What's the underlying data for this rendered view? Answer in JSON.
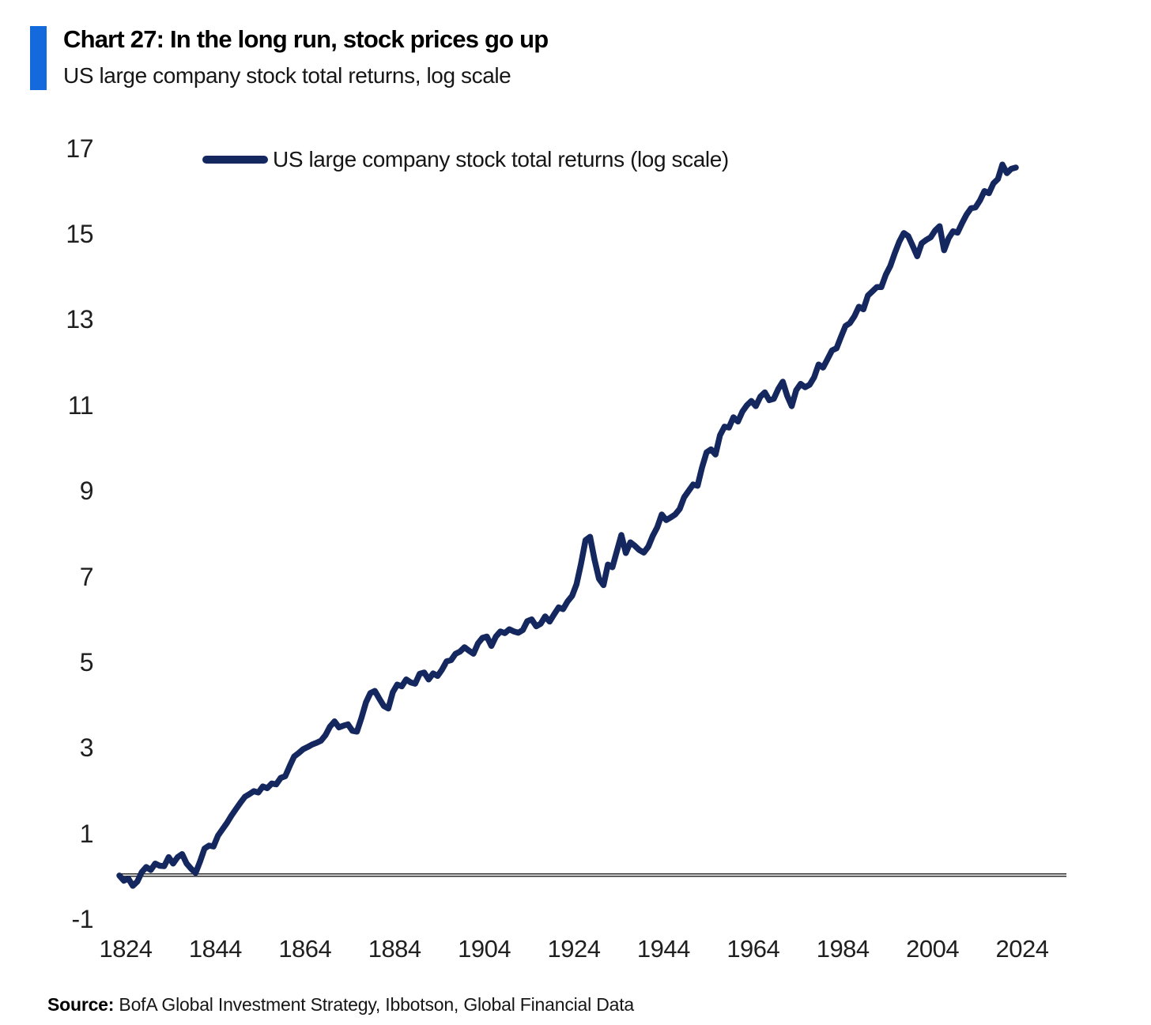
{
  "header": {
    "title": "Chart 27: In the long run, stock prices go up",
    "subtitle": "US large company stock total returns, log scale"
  },
  "legend": {
    "label": "US large company stock total returns (log scale)"
  },
  "source": {
    "label": "Source:",
    "text": " BofA Global Investment Strategy, Ibbotson, Global Financial Data"
  },
  "colors": {
    "accent_bar": "#1469dc",
    "line": "#14275e",
    "axis": "#3a3a3a",
    "tick_text": "#1f1f1f"
  },
  "chart_data": {
    "type": "line",
    "title": "US large company stock total returns, log scale",
    "xlabel": "",
    "ylabel": "",
    "grid": false,
    "legend_position": "top-left-inside",
    "x_ticks": [
      1824,
      1844,
      1864,
      1884,
      1904,
      1924,
      1944,
      1964,
      1984,
      2004,
      2024
    ],
    "y_ticks": [
      17,
      15,
      13,
      11,
      9,
      7,
      5,
      3,
      1,
      -1
    ],
    "xlim": [
      1824,
      2034
    ],
    "ylim": [
      -1.6,
      17.4
    ],
    "baseline": 0,
    "series": [
      {
        "name": "US large company stock total returns (log scale)",
        "x_start": 1824,
        "x_step": 1,
        "values": [
          0.02,
          -0.1,
          -0.05,
          -0.22,
          -0.12,
          0.1,
          0.22,
          0.15,
          0.3,
          0.25,
          0.24,
          0.45,
          0.3,
          0.45,
          0.52,
          0.3,
          0.18,
          0.08,
          0.35,
          0.65,
          0.72,
          0.7,
          0.95,
          1.1,
          1.25,
          1.42,
          1.57,
          1.72,
          1.86,
          1.92,
          1.99,
          1.96,
          2.1,
          2.06,
          2.17,
          2.15,
          2.3,
          2.34,
          2.58,
          2.8,
          2.88,
          2.97,
          3.02,
          3.08,
          3.12,
          3.17,
          3.3,
          3.5,
          3.62,
          3.48,
          3.52,
          3.55,
          3.4,
          3.38,
          3.7,
          4.06,
          4.28,
          4.33,
          4.15,
          3.98,
          3.92,
          4.3,
          4.48,
          4.44,
          4.6,
          4.53,
          4.5,
          4.73,
          4.76,
          4.6,
          4.74,
          4.68,
          4.83,
          5.02,
          5.05,
          5.2,
          5.25,
          5.35,
          5.27,
          5.2,
          5.44,
          5.57,
          5.6,
          5.38,
          5.6,
          5.72,
          5.68,
          5.77,
          5.72,
          5.69,
          5.75,
          5.96,
          6.0,
          5.84,
          5.9,
          6.07,
          5.95,
          6.12,
          6.28,
          6.24,
          6.42,
          6.55,
          6.82,
          7.3,
          7.85,
          7.93,
          7.4,
          6.95,
          6.8,
          7.28,
          7.22,
          7.6,
          7.97,
          7.55,
          7.8,
          7.72,
          7.62,
          7.56,
          7.7,
          7.95,
          8.15,
          8.45,
          8.32,
          8.38,
          8.45,
          8.58,
          8.85,
          9.0,
          9.15,
          9.12,
          9.55,
          9.9,
          9.97,
          9.85,
          10.3,
          10.5,
          10.48,
          10.72,
          10.62,
          10.85,
          11.0,
          11.1,
          10.98,
          11.2,
          11.3,
          11.12,
          11.15,
          11.38,
          11.55,
          11.22,
          10.98,
          11.35,
          11.5,
          11.42,
          11.48,
          11.65,
          11.95,
          11.88,
          12.08,
          12.28,
          12.33,
          12.6,
          12.85,
          12.92,
          13.08,
          13.3,
          13.24,
          13.56,
          13.66,
          13.76,
          13.76,
          14.05,
          14.25,
          14.55,
          14.82,
          15.02,
          14.95,
          14.72,
          14.48,
          14.78,
          14.86,
          14.92,
          15.08,
          15.18,
          14.62,
          14.9,
          15.06,
          15.03,
          15.25,
          15.45,
          15.6,
          15.62,
          15.78,
          16.0,
          15.95,
          16.18,
          16.28,
          16.62,
          16.42,
          16.52,
          16.55
        ]
      }
    ]
  }
}
